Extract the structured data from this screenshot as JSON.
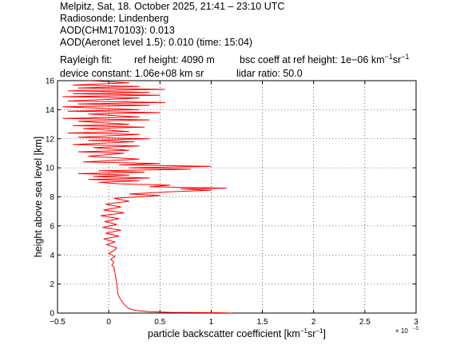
{
  "header": {
    "line1": "Melpitz, Sat, 18. October 2025, 21:41 – 23:10 UTC",
    "line2": "Radiosonde: Lindenberg",
    "line3": "AOD(CHM170103): 0.013",
    "line4": "AOD(Aeronet level 1.5): 0.010   (time: 15:04)",
    "rayleigh_label": "Rayleigh fit:",
    "ref_height": "ref height: 4090 m",
    "bsc_coeff_prefix": "bsc coeff at ref height: 1e−06 km",
    "bsc_coeff_sup1": "−1",
    "bsc_coeff_mid": "sr",
    "bsc_coeff_sup2": "−1",
    "device_constant": "device constant: 1.06e+08 km sr",
    "lidar_ratio": "lidar ratio: 50.0"
  },
  "chart_data": {
    "type": "line",
    "xlabel_prefix": "particle backscatter coefficient [km",
    "xlabel_sup1": "−1",
    "xlabel_mid": "sr",
    "xlabel_sup2": "−1",
    "xlabel_suffix": "]",
    "ylabel": "height above sea level [km]",
    "x_multiplier": "× 10",
    "x_multiplier_exp": "−3",
    "xlim": [
      -0.5,
      3
    ],
    "ylim": [
      0,
      16
    ],
    "xticks": [
      -0.5,
      0,
      0.5,
      1,
      1.5,
      2,
      2.5,
      3
    ],
    "xtick_labels": [
      "−0.5",
      "0",
      "0.5",
      "1",
      "1.5",
      "2",
      "2.5",
      "3"
    ],
    "yticks": [
      0,
      2,
      4,
      6,
      8,
      10,
      12,
      14,
      16
    ],
    "ytick_labels": [
      "0",
      "2",
      "4",
      "6",
      "8",
      "10",
      "12",
      "14",
      "16"
    ],
    "grid": true,
    "series": [
      {
        "color": "#ff0000",
        "points": [
          [
            1.2,
            0.0
          ],
          [
            1.1,
            0.02
          ],
          [
            0.6,
            0.05
          ],
          [
            0.4,
            0.1
          ],
          [
            0.3,
            0.15
          ],
          [
            0.25,
            0.2
          ],
          [
            0.2,
            0.3
          ],
          [
            0.17,
            0.45
          ],
          [
            0.15,
            0.6
          ],
          [
            0.13,
            0.8
          ],
          [
            0.11,
            1.0
          ],
          [
            0.1,
            1.15
          ],
          [
            0.09,
            1.3
          ],
          [
            0.085,
            1.6
          ],
          [
            0.08,
            2.0
          ],
          [
            0.07,
            2.4
          ],
          [
            0.06,
            2.8
          ],
          [
            0.05,
            3.2
          ],
          [
            0.03,
            3.3
          ],
          [
            0.05,
            3.5
          ],
          [
            0.02,
            3.7
          ],
          [
            0.06,
            3.9
          ],
          [
            0.0,
            4.1
          ],
          [
            0.05,
            4.3
          ],
          [
            0.08,
            4.5
          ],
          [
            -0.02,
            4.7
          ],
          [
            0.06,
            4.9
          ],
          [
            -0.05,
            5.1
          ],
          [
            0.1,
            5.3
          ],
          [
            -0.03,
            5.5
          ],
          [
            0.12,
            5.7
          ],
          [
            -0.06,
            5.9
          ],
          [
            0.08,
            6.1
          ],
          [
            -0.04,
            6.3
          ],
          [
            0.1,
            6.5
          ],
          [
            -0.08,
            6.7
          ],
          [
            0.15,
            6.9
          ],
          [
            -0.05,
            7.1
          ],
          [
            0.12,
            7.3
          ],
          [
            -0.03,
            7.5
          ],
          [
            0.2,
            7.7
          ],
          [
            0.05,
            7.9
          ],
          [
            0.3,
            8.0
          ],
          [
            0.5,
            8.1
          ],
          [
            0.2,
            8.2
          ],
          [
            0.6,
            8.35
          ],
          [
            1.0,
            8.45
          ],
          [
            0.7,
            8.55
          ],
          [
            1.15,
            8.6
          ],
          [
            0.4,
            8.7
          ],
          [
            0.6,
            8.8
          ],
          [
            0.1,
            8.9
          ],
          [
            -0.1,
            9.0
          ],
          [
            0.3,
            9.1
          ],
          [
            -0.2,
            9.2
          ],
          [
            0.4,
            9.3
          ],
          [
            -0.15,
            9.4
          ],
          [
            0.2,
            9.5
          ],
          [
            -0.3,
            9.6
          ],
          [
            0.35,
            9.7
          ],
          [
            -0.1,
            9.8
          ],
          [
            0.8,
            9.9
          ],
          [
            0.2,
            10.0
          ],
          [
            1.0,
            10.1
          ],
          [
            0.1,
            10.2
          ],
          [
            0.5,
            10.3
          ],
          [
            -0.25,
            10.4
          ],
          [
            0.3,
            10.6
          ],
          [
            -0.2,
            10.8
          ],
          [
            0.15,
            11.0
          ],
          [
            -0.3,
            11.1
          ],
          [
            0.2,
            11.2
          ],
          [
            -0.15,
            11.4
          ],
          [
            0.3,
            11.5
          ],
          [
            -0.35,
            11.6
          ],
          [
            0.25,
            11.8
          ],
          [
            -0.2,
            11.9
          ],
          [
            0.4,
            12.0
          ],
          [
            -0.3,
            12.1
          ],
          [
            0.3,
            12.3
          ],
          [
            -0.4,
            12.4
          ],
          [
            0.2,
            12.5
          ],
          [
            -0.25,
            12.7
          ],
          [
            0.35,
            12.8
          ],
          [
            -0.35,
            12.9
          ],
          [
            0.2,
            13.0
          ],
          [
            -0.3,
            13.2
          ],
          [
            0.4,
            13.3
          ],
          [
            -0.45,
            13.4
          ],
          [
            0.3,
            13.5
          ],
          [
            -0.2,
            13.7
          ],
          [
            0.5,
            13.8
          ],
          [
            -0.4,
            13.9
          ],
          [
            0.3,
            14.0
          ],
          [
            -0.45,
            14.2
          ],
          [
            0.4,
            14.3
          ],
          [
            -0.3,
            14.4
          ],
          [
            0.55,
            14.5
          ],
          [
            -0.4,
            14.6
          ],
          [
            0.3,
            14.8
          ],
          [
            -0.45,
            14.9
          ],
          [
            0.5,
            15.0
          ],
          [
            -0.35,
            15.1
          ],
          [
            0.4,
            15.2
          ],
          [
            -0.4,
            15.3
          ],
          [
            0.55,
            15.4
          ],
          [
            -0.3,
            15.5
          ],
          [
            0.3,
            15.6
          ],
          [
            -0.35,
            15.7
          ],
          [
            0.2,
            15.85
          ],
          [
            -0.2,
            16.0
          ]
        ]
      }
    ]
  }
}
